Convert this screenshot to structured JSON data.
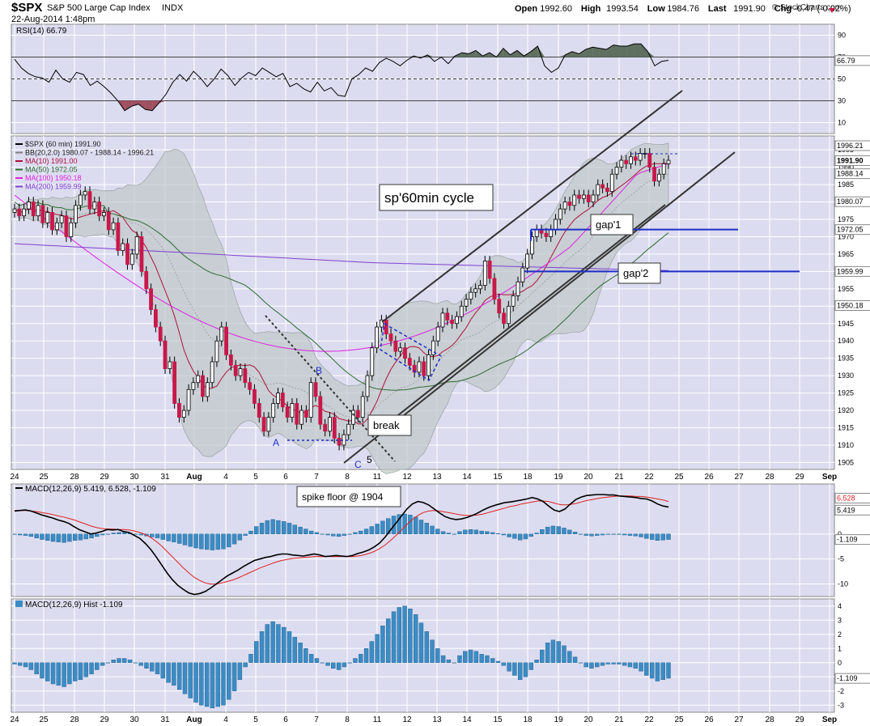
{
  "header": {
    "symbol": "$SPX",
    "name": "S&P 500 Large Cap Index",
    "exchange": "INDX",
    "datetime": "22-Aug-2014 1:48pm",
    "watermark": "© StockCharts.com",
    "stats": [
      {
        "label": "Open",
        "value": "1992.60"
      },
      {
        "label": "High",
        "value": "1993.54"
      },
      {
        "label": "Low",
        "value": "1984.76"
      },
      {
        "label": "Last",
        "value": "1991.90"
      },
      {
        "label": "Chg",
        "value": "-0.47 (-0.02%)"
      }
    ]
  },
  "colors": {
    "panel_bg": "#dcdcf0",
    "grid": "#ffffff",
    "up_candle": "#ffffff",
    "down_candle": "#c8184a",
    "ma10": "#b0103c",
    "ma50": "#2e6b2e",
    "ma100": "#e020e0",
    "ma200": "#8040d0",
    "bb_fill": "#bfc7c7",
    "gap_line": "#1f2fc8",
    "hist": "#3c8cc4",
    "rsi_fill_high": "#607060",
    "rsi_fill_low": "#a05060"
  },
  "chart_data": [
    {
      "type": "line",
      "title": "RSI(14) 66.79",
      "ylim": [
        0,
        100
      ],
      "ticks": [
        10,
        30,
        50,
        70,
        90
      ],
      "tick_labels": [
        "10",
        "30",
        "50",
        "70",
        "90"
      ],
      "last_label": "66.79",
      "series": [
        {
          "name": "RSI(14)",
          "values": [
            68,
            60,
            55,
            52,
            51,
            47,
            58,
            50,
            47,
            56,
            54,
            44,
            48,
            43,
            37,
            30,
            21,
            25,
            27,
            22,
            21,
            28,
            36,
            47,
            54,
            48,
            57,
            51,
            43,
            50,
            59,
            53,
            44,
            51,
            56,
            53,
            60,
            56,
            52,
            55,
            43,
            46,
            41,
            38,
            47,
            39,
            42,
            35,
            34,
            50,
            54,
            60,
            57,
            65,
            69,
            66,
            62,
            67,
            71,
            69,
            72,
            66,
            70,
            64,
            71,
            74,
            73,
            76,
            71,
            74,
            70,
            78,
            72,
            76,
            71,
            75,
            80,
            62,
            56,
            60,
            72,
            75,
            73,
            77,
            79,
            78,
            77,
            81,
            80,
            80,
            82,
            82,
            75,
            62,
            66,
            67
          ]
        }
      ],
      "overbought": 70,
      "oversold": 30
    },
    {
      "type": "line",
      "title": "$SPX (60 min) 1991.90",
      "ylim": [
        1903,
        1999
      ],
      "yticks": [
        1905,
        1910,
        1915,
        1920,
        1925,
        1930,
        1935,
        1940,
        1945,
        1950,
        1955,
        1960,
        1965,
        1970,
        1975,
        1980,
        1985,
        1990,
        1995
      ],
      "x_labels": [
        "24",
        "25",
        "28",
        "29",
        "30",
        "31",
        "Aug",
        "4",
        "5",
        "6",
        "7",
        "8",
        "11",
        "12",
        "13",
        "14",
        "15",
        "18",
        "19",
        "20",
        "21",
        "22",
        "25",
        "26",
        "27",
        "28",
        "29",
        "Sep"
      ],
      "legend": [
        {
          "label": "$SPX (60 min) 1991.90",
          "color": "#000000"
        },
        {
          "label": "BB(20,2.0) 1980.07 - 1988.14 - 1996.21",
          "color": "#808080"
        },
        {
          "label": "MA(10) 1991.00",
          "color": "#b0103c"
        },
        {
          "label": "MA(50) 1972.05",
          "color": "#2e6b2e"
        },
        {
          "label": "MA(100) 1950.18",
          "color": "#e020e0"
        },
        {
          "label": "MA(200) 1959.99",
          "color": "#8040d0"
        }
      ],
      "price_tags": [
        {
          "label": "1996.21",
          "value": 1996.21
        },
        {
          "label": "1991.90",
          "value": 1991.9
        },
        {
          "label": "1988.14",
          "value": 1988.14
        },
        {
          "label": "1980.07",
          "value": 1980.07
        },
        {
          "label": "1972.05",
          "value": 1972.05
        },
        {
          "label": "1959.99",
          "value": 1959.99
        },
        {
          "label": "1950.18",
          "value": 1950.18
        }
      ],
      "close": [
        1978,
        1976,
        1978,
        1980,
        1976,
        1979,
        1974,
        1977,
        1972,
        1974,
        1976,
        1970,
        1974,
        1979,
        1982,
        1983,
        1978,
        1980,
        1976,
        1977,
        1972,
        1974,
        1966,
        1968,
        1962,
        1965,
        1970,
        1960,
        1955,
        1949,
        1944,
        1940,
        1932,
        1934,
        1922,
        1918,
        1920,
        1926,
        1928,
        1930,
        1924,
        1928,
        1934,
        1940,
        1944,
        1936,
        1933,
        1930,
        1932,
        1928,
        1926,
        1922,
        1918,
        1914,
        1918,
        1922,
        1925,
        1921,
        1918,
        1922,
        1916,
        1920,
        1918,
        1928,
        1924,
        1916,
        1914,
        1918,
        1912,
        1910,
        1913,
        1916,
        1920,
        1918,
        1924,
        1930,
        1938,
        1944,
        1946,
        1942,
        1940,
        1937,
        1938,
        1935,
        1933,
        1931,
        1934,
        1930,
        1936,
        1940,
        1944,
        1948,
        1946,
        1945,
        1947,
        1950,
        1952,
        1954,
        1955,
        1956,
        1963,
        1958,
        1952,
        1948,
        1945,
        1950,
        1953,
        1957,
        1961,
        1965,
        1970,
        1972,
        1971,
        1970,
        1972,
        1975,
        1978,
        1980,
        1979,
        1982,
        1981,
        1982,
        1980,
        1982,
        1985,
        1984,
        1983,
        1988,
        1990,
        1992,
        1991,
        1993,
        1992,
        1994,
        1994,
        1990,
        1986,
        1988,
        1991,
        1992
      ],
      "gaps": [
        {
          "label": "gap'1",
          "value": 1972.05
        },
        {
          "label": "gap'2",
          "value": 1959.99
        }
      ],
      "annotations": [
        "sp'60min cycle",
        "break",
        "A",
        "B",
        "C",
        "5"
      ]
    },
    {
      "type": "line",
      "title": "MACD(12,26,9) 5.419, 6.528, -1.109",
      "ylim": [
        -12.5,
        10
      ],
      "yticks": [
        0,
        -5,
        -10
      ],
      "tick_labels": [
        "0",
        "-5",
        "-10"
      ],
      "last_labels": [
        {
          "label": "6.528",
          "value": 6.528
        },
        {
          "label": "5.419",
          "value": 5.419
        },
        {
          "label": "-1.109",
          "value": -1.109
        }
      ],
      "series": [
        {
          "name": "MACD",
          "values": [
            4.6,
            4.7,
            4.8,
            4.6,
            4.2,
            3.8,
            3.5,
            3.2,
            2.8,
            2.5,
            2.1,
            1.4,
            0.8,
            0.4,
            0,
            0.2,
            0.5,
            0.9,
            0.8,
            0.9,
            0.5,
            0.3,
            -0.3,
            -0.9,
            -1.9,
            -3.1,
            -4.6,
            -6.2,
            -7.8,
            -9.2,
            -10.3,
            -11.1,
            -11.8,
            -12.1,
            -11.9,
            -11.5,
            -10.8,
            -10.0,
            -9.2,
            -8.4,
            -7.8,
            -7.2,
            -6.5,
            -5.9,
            -5.3,
            -5.0,
            -4.7,
            -4.5,
            -4.2,
            -4.0,
            -4.0,
            -4.2,
            -4.3,
            -4.4,
            -4.2,
            -4.0,
            -4.2,
            -4.5,
            -4.4,
            -4.3,
            -4.4,
            -4.5,
            -4.3,
            -3.9,
            -3.6,
            -3.2,
            -2.6,
            -1.8,
            -0.6,
            0.8,
            2.2,
            3.6,
            5.0,
            6.0,
            6.5,
            6.3,
            5.8,
            5.0,
            4.2,
            3.5,
            3.1,
            2.9,
            3.0,
            3.3,
            3.7,
            4.2,
            4.8,
            5.3,
            5.7,
            6.0,
            6.3,
            6.4,
            6.6,
            6.8,
            7.0,
            7.3,
            7.0,
            6.5,
            5.6,
            4.8,
            4.5,
            5.0,
            6.0,
            6.9,
            7.4,
            7.7,
            7.8,
            7.9,
            7.9,
            7.8,
            7.8,
            7.6,
            7.5,
            7.4,
            7.3,
            7.1,
            7.0,
            6.6,
            6.0,
            5.6,
            5.4
          ]
        },
        {
          "name": "Signal",
          "values": [
            4.7,
            4.7,
            4.7,
            4.6,
            4.5,
            4.3,
            4.1,
            3.9,
            3.6,
            3.4,
            3.1,
            2.8,
            2.4,
            2.0,
            1.6,
            1.3,
            1.1,
            1.0,
            1.0,
            0.9,
            0.9,
            0.8,
            0.6,
            0.3,
            -0.1,
            -0.7,
            -1.5,
            -2.4,
            -3.5,
            -4.6,
            -5.7,
            -6.8,
            -7.8,
            -8.7,
            -9.3,
            -9.8,
            -10.0,
            -10.0,
            -9.8,
            -9.5,
            -9.2,
            -8.8,
            -8.3,
            -7.8,
            -7.3,
            -6.8,
            -6.4,
            -6.0,
            -5.6,
            -5.3,
            -5.1,
            -4.9,
            -4.8,
            -4.7,
            -4.6,
            -4.5,
            -4.5,
            -4.5,
            -4.5,
            -4.5,
            -4.5,
            -4.5,
            -4.5,
            -4.4,
            -4.2,
            -3.9,
            -3.5,
            -2.9,
            -2.2,
            -1.3,
            -0.3,
            0.8,
            1.9,
            2.9,
            3.7,
            4.3,
            4.6,
            4.7,
            4.6,
            4.4,
            4.2,
            4.0,
            3.8,
            3.7,
            3.7,
            3.8,
            4.0,
            4.3,
            4.6,
            4.9,
            5.2,
            5.5,
            5.7,
            6.0,
            6.2,
            6.4,
            6.6,
            6.6,
            6.5,
            6.2,
            5.9,
            5.8,
            5.9,
            6.1,
            6.4,
            6.7,
            6.9,
            7.1,
            7.3,
            7.4,
            7.5,
            7.6,
            7.6,
            7.6,
            7.5,
            7.5,
            7.4,
            7.2,
            7.0,
            6.8,
            6.5
          ]
        }
      ],
      "annotation": "spike floor @ 1904"
    },
    {
      "type": "bar",
      "title": "MACD(12,26,9) Hist -1.109",
      "ylim": [
        -3.5,
        4.5
      ],
      "yticks": [
        4,
        3,
        2,
        1,
        0,
        -1,
        -2,
        -3
      ],
      "tick_labels": [
        "4",
        "3",
        "2",
        "1",
        "0",
        "-1",
        "-2",
        "-3"
      ],
      "last_label": "-1.109",
      "values": [
        -0.1,
        -0.2,
        -0.3,
        -0.5,
        -0.8,
        -1.1,
        -1.3,
        -1.5,
        -1.6,
        -1.7,
        -1.5,
        -1.3,
        -1.2,
        -1.0,
        -0.8,
        -0.5,
        -0.2,
        0.0,
        0.2,
        0.3,
        0.3,
        0.2,
        0.0,
        -0.2,
        -0.4,
        -0.6,
        -0.8,
        -1.1,
        -1.4,
        -1.6,
        -1.9,
        -2.2,
        -2.5,
        -2.8,
        -3.0,
        -3.1,
        -3.2,
        -3.1,
        -3.0,
        -2.6,
        -2.0,
        -1.2,
        -0.3,
        0.6,
        1.5,
        2.2,
        2.7,
        2.9,
        2.7,
        2.5,
        2.2,
        1.8,
        1.4,
        1.0,
        0.6,
        0.3,
        0.0,
        -0.2,
        -0.4,
        -0.5,
        -0.3,
        0.0,
        0.3,
        0.6,
        1.0,
        1.5,
        2.0,
        2.6,
        3.1,
        3.6,
        3.9,
        4.0,
        3.8,
        3.4,
        2.8,
        2.2,
        1.6,
        1.0,
        0.5,
        0.2,
        0.0,
        0.5,
        0.8,
        0.9,
        0.8,
        0.6,
        0.5,
        0.3,
        0.1,
        -0.2,
        -0.6,
        -0.9,
        -1.2,
        -1.0,
        -0.5,
        0.2,
        0.9,
        1.4,
        1.6,
        1.5,
        1.2,
        0.8,
        0.4,
        0.0,
        -0.3,
        -0.4,
        -0.3,
        -0.2,
        -0.1,
        -0.1,
        -0.1,
        -0.2,
        -0.3,
        -0.4,
        -0.6,
        -0.9,
        -1.1,
        -1.3,
        -1.2,
        -1.1
      ]
    }
  ]
}
